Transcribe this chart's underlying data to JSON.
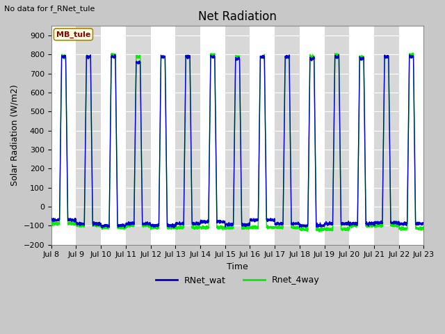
{
  "title": "Net Radiation",
  "no_data_text": "No data for f_RNet_tule",
  "xlabel": "Time",
  "ylabel": "Solar Radiation (W/m2)",
  "ylim": [
    -200,
    950
  ],
  "yticks": [
    -200,
    -100,
    0,
    100,
    200,
    300,
    400,
    500,
    600,
    700,
    800,
    900
  ],
  "xtick_labels": [
    "Jul 8",
    "Jul 9",
    "Jul 10",
    "Jul 11",
    "Jul 12",
    "Jul 13",
    "Jul 14",
    "Jul 15",
    "Jul 16",
    "Jul 17",
    "Jul 18",
    "Jul 19",
    "Jul 20",
    "Jul 21",
    "Jul 22",
    "Jul 23"
  ],
  "n_days": 15,
  "peak_blue": [
    790,
    790,
    790,
    760,
    790,
    790,
    790,
    780,
    790,
    790,
    780,
    790,
    780,
    790,
    790
  ],
  "peak_green": [
    790,
    790,
    800,
    790,
    790,
    790,
    800,
    790,
    790,
    790,
    790,
    800,
    790,
    790,
    800
  ],
  "trough_blue": [
    -70,
    -90,
    -100,
    -90,
    -100,
    -90,
    -80,
    -95,
    -70,
    -90,
    -100,
    -90,
    -90,
    -85,
    -90
  ],
  "trough_green": [
    -90,
    -100,
    -110,
    -100,
    -110,
    -110,
    -110,
    -110,
    -110,
    -110,
    -120,
    -120,
    -100,
    -100,
    -115
  ],
  "line_color_blue": "#0000cc",
  "line_color_green": "#00ee00",
  "legend_blue": "RNet_wat",
  "legend_green": "Rnet_4way",
  "annotation_text": "MB_tule",
  "fig_bg_color": "#c8c8c8",
  "plot_bg_color": "#e8e8e8",
  "band_colors": [
    "#ffffff",
    "#d8d8d8"
  ],
  "grid_color": "#ffffff",
  "title_fontsize": 12,
  "label_fontsize": 9,
  "tick_fontsize": 8,
  "legend_fontsize": 9
}
